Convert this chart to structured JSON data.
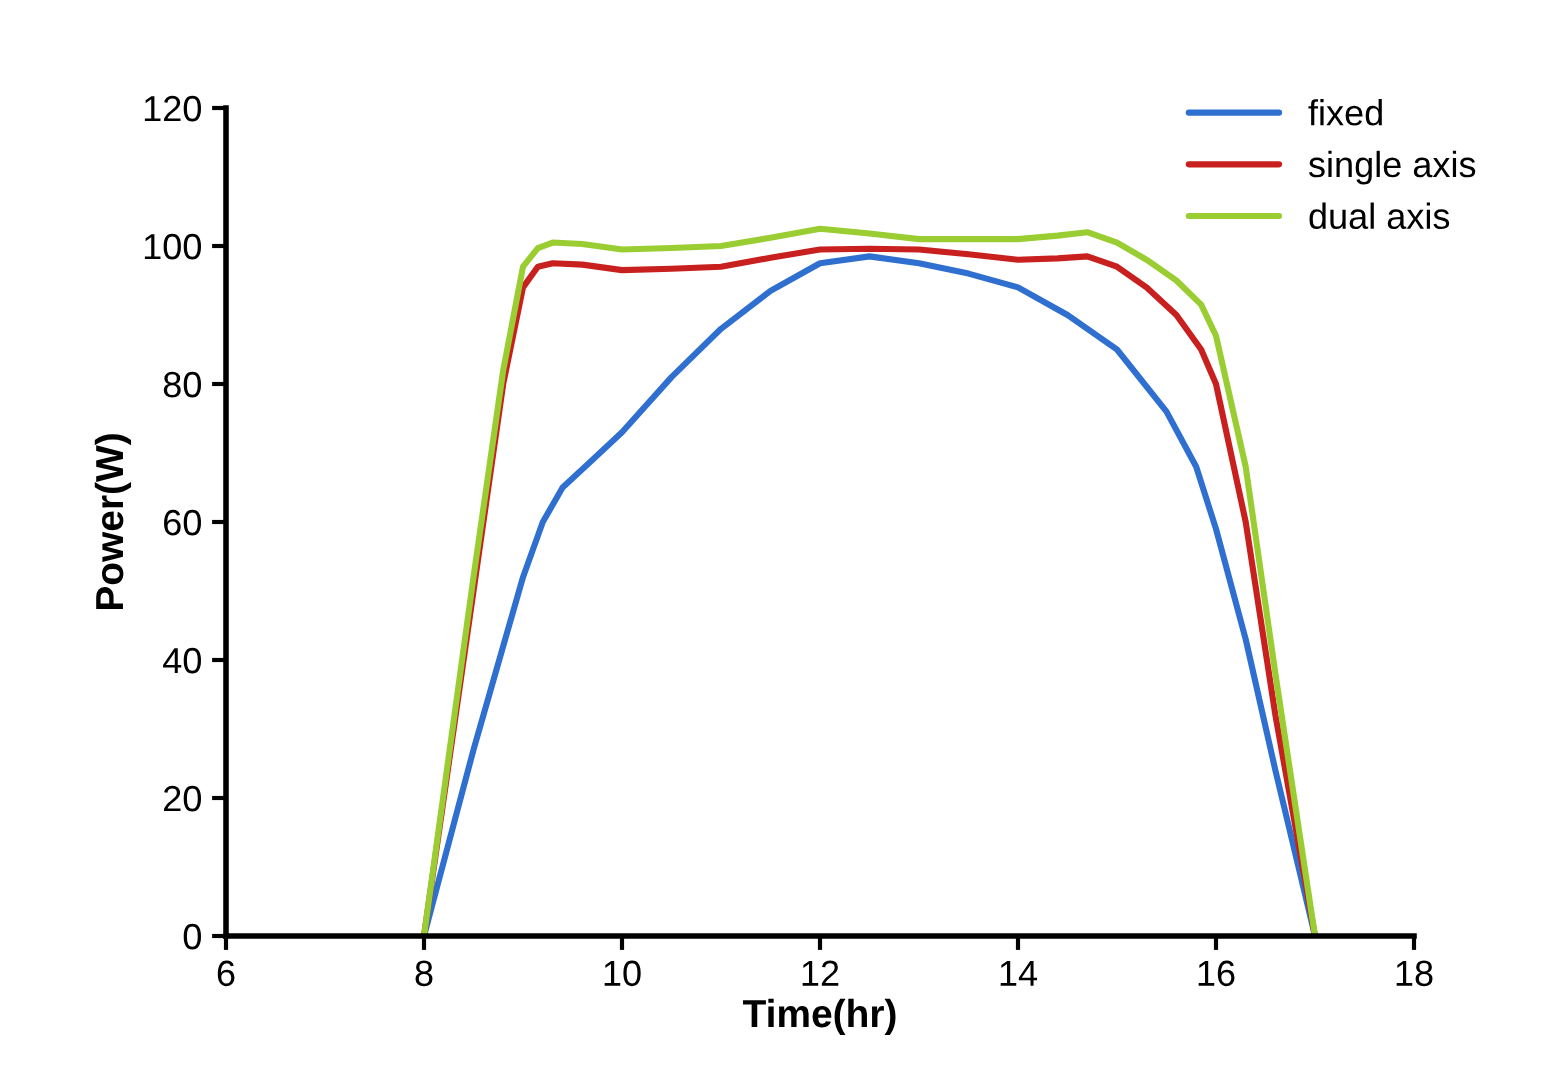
{
  "chart_data": {
    "type": "line",
    "xlabel": "Time(hr)",
    "ylabel": "Power(W)",
    "xlim": [
      6,
      18
    ],
    "xticks": [
      6,
      8,
      10,
      12,
      14,
      16,
      18
    ],
    "ylim": [
      0,
      120
    ],
    "yticks": [
      0,
      20,
      40,
      60,
      80,
      100,
      120
    ],
    "grid": false,
    "legend": "top right",
    "marker": "none",
    "line_style": "solid",
    "series": [
      {
        "name": "fixed",
        "color": "#2f6fd0",
        "x": [
          8,
          8.5,
          8.8,
          9,
          9.2,
          9.4,
          9.7,
          10,
          10.5,
          11,
          11.5,
          12,
          12.5,
          13,
          13.5,
          14,
          14.5,
          15,
          15.5,
          15.8,
          16,
          16.3,
          16.6,
          17
        ],
        "values": [
          0,
          27,
          42,
          52,
          60,
          65,
          69,
          73,
          81,
          88,
          93.5,
          97.5,
          98.5,
          97.5,
          96,
          94,
          90,
          85,
          76,
          68,
          59,
          43,
          24,
          0
        ]
      },
      {
        "name": "single axis",
        "color": "#c8201e",
        "x": [
          8,
          8.5,
          8.8,
          9,
          9.15,
          9.3,
          9.6,
          10,
          10.5,
          11,
          11.5,
          12,
          12.5,
          13,
          13.5,
          14,
          14.4,
          14.7,
          15,
          15.3,
          15.6,
          15.85,
          16,
          16.3,
          16.6,
          17
        ],
        "values": [
          0,
          50,
          80,
          94,
          97,
          97.5,
          97.3,
          96.5,
          96.7,
          97,
          98.3,
          99.5,
          99.6,
          99.5,
          98.8,
          98,
          98.2,
          98.5,
          97,
          94,
          90,
          85,
          80,
          60,
          32,
          0
        ]
      },
      {
        "name": "dual axis",
        "color": "#9acd32",
        "x": [
          8,
          8.5,
          8.8,
          9,
          9.15,
          9.3,
          9.6,
          10,
          10.5,
          11,
          11.5,
          12,
          12.5,
          13,
          13.5,
          14,
          14.4,
          14.7,
          15,
          15.3,
          15.6,
          15.85,
          16,
          16.3,
          16.6,
          17
        ],
        "values": [
          0,
          52,
          82,
          97,
          99.7,
          100.5,
          100.3,
          99.5,
          99.7,
          100,
          101.2,
          102.5,
          101.8,
          101,
          101,
          101,
          101.5,
          102,
          100.5,
          98,
          95,
          91.5,
          87,
          68,
          38,
          0
        ]
      }
    ]
  }
}
